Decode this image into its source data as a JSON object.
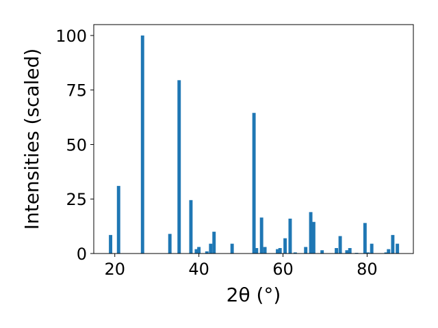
{
  "chart_data": {
    "type": "bar",
    "xlabel": "2θ (°)",
    "ylabel": "Intensities (scaled)",
    "xlim": [
      15,
      91
    ],
    "ylim": [
      0,
      105
    ],
    "xticks": [
      20,
      40,
      60,
      80
    ],
    "yticks": [
      0,
      25,
      50,
      75,
      100
    ],
    "grid": false,
    "color": "#1f77b4",
    "bar_width": 0.8,
    "x": [
      19.0,
      20.9,
      26.6,
      33.1,
      35.3,
      38.1,
      39.4,
      40.0,
      41.9,
      42.8,
      43.6,
      47.9,
      53.1,
      53.7,
      54.9,
      55.7,
      58.7,
      59.3,
      60.5,
      61.7,
      62.9,
      65.4,
      66.6,
      67.3,
      69.3,
      72.7,
      73.6,
      75.2,
      75.9,
      77.5,
      79.5,
      80.2,
      81.1,
      84.5,
      85.1,
      86.1,
      87.2
    ],
    "values": [
      8.5,
      31.0,
      100.0,
      9.0,
      79.5,
      24.5,
      2.0,
      3.0,
      1.0,
      4.5,
      10.0,
      4.5,
      64.5,
      2.5,
      16.5,
      3.0,
      2.0,
      2.5,
      7.0,
      16.0,
      0.5,
      3.0,
      19.0,
      14.5,
      1.5,
      2.5,
      8.0,
      1.5,
      2.5,
      0.3,
      14.0,
      0.5,
      4.5,
      0.5,
      2.0,
      8.5,
      4.5
    ]
  }
}
